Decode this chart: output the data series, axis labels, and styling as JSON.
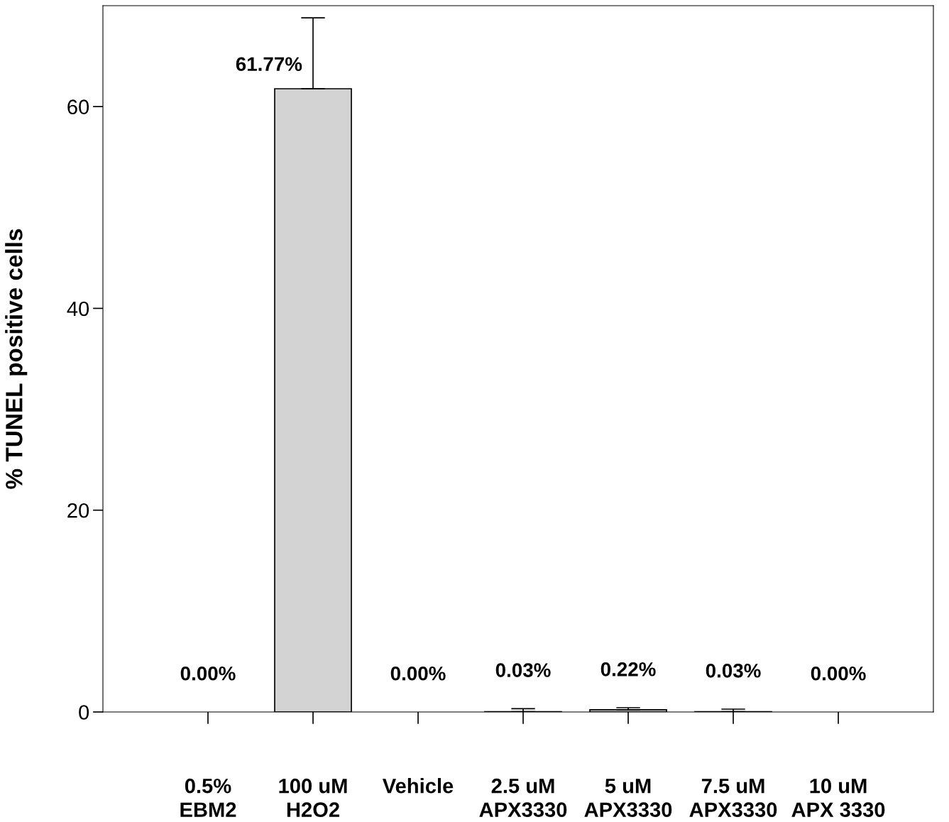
{
  "chart_data": {
    "type": "bar",
    "ylabel": "% TUNEL positive cells",
    "categories": [
      "0.5%\nEBM2",
      "100 uM\nH2O2",
      "Vehicle",
      "2.5 uM\nAPX3330",
      "5 uM\nAPX3330",
      "7.5 uM\nAPX3330",
      "10 uM\nAPX 3330"
    ],
    "values": [
      0.0,
      61.77,
      0.0,
      0.03,
      0.22,
      0.03,
      0.0
    ],
    "errors": [
      null,
      [
        61.77,
        68.8
      ],
      null,
      [
        0.03,
        0.33
      ],
      [
        0.22,
        0.42
      ],
      [
        0.03,
        0.28
      ],
      null
    ],
    "value_labels": [
      "0.00%",
      "61.77%",
      "0.00%",
      "0.03%",
      "0.22%",
      "0.03%",
      "0.00%"
    ],
    "color": "#d3d3d3",
    "ylim": [
      0,
      70
    ],
    "yticks": [
      0,
      20,
      40,
      60
    ],
    "grid": false,
    "legend": false
  }
}
